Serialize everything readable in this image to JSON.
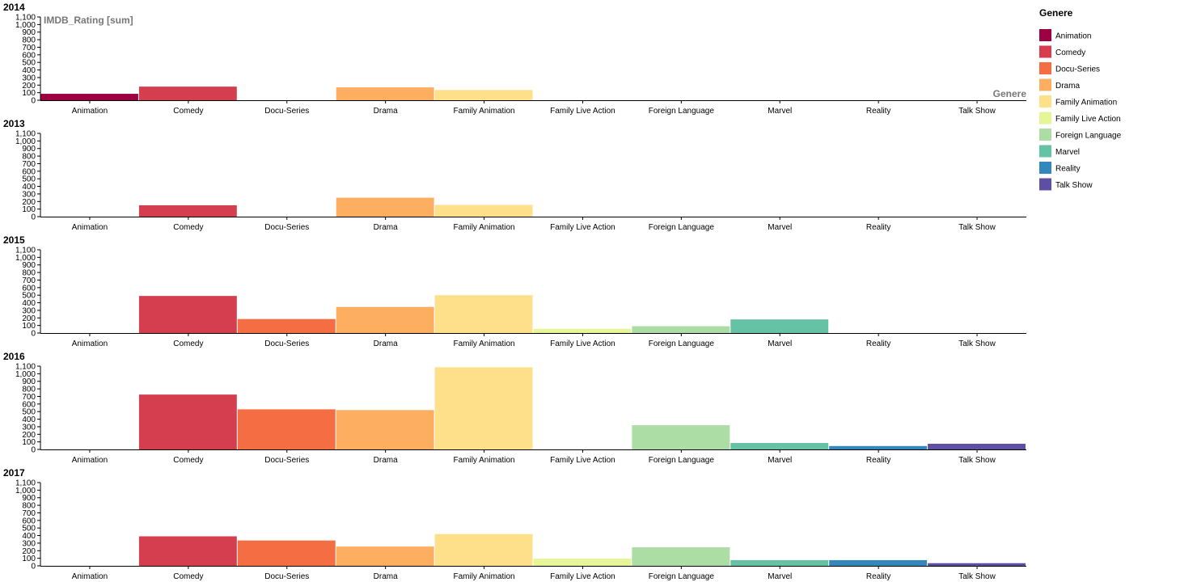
{
  "legend": {
    "title": "Genere"
  },
  "chart_data": {
    "type": "bar",
    "y_axis_title": "IMDB_Rating [sum]",
    "x_axis_title": "Genere",
    "ylim": [
      0,
      1100
    ],
    "yticks": [
      0,
      100,
      200,
      300,
      400,
      500,
      600,
      700,
      800,
      900,
      1000,
      1100
    ],
    "ytick_labels": [
      "0",
      "100",
      "200",
      "300",
      "400",
      "500",
      "600",
      "700",
      "800",
      "900",
      "1,000",
      "1,100"
    ],
    "categories": [
      "Animation",
      "Comedy",
      "Docu-Series",
      "Drama",
      "Family Animation",
      "Family Live Action",
      "Foreign Language",
      "Marvel",
      "Reality",
      "Talk Show"
    ],
    "colors": [
      "#9e0142",
      "#d53e4f",
      "#f46d43",
      "#fdae61",
      "#fee08b",
      "#e6f598",
      "#abdda4",
      "#66c2a5",
      "#3288bd",
      "#5e4fa2"
    ],
    "grid": false,
    "legend_position": "right",
    "panels": [
      {
        "title": "2014",
        "values": [
          85,
          180,
          0,
          170,
          135,
          0,
          0,
          0,
          0,
          0
        ]
      },
      {
        "title": "2013",
        "values": [
          0,
          150,
          0,
          250,
          155,
          0,
          0,
          0,
          0,
          0
        ]
      },
      {
        "title": "2015",
        "values": [
          0,
          490,
          185,
          345,
          500,
          55,
          90,
          180,
          0,
          0
        ]
      },
      {
        "title": "2016",
        "values": [
          0,
          725,
          530,
          520,
          1085,
          0,
          320,
          85,
          45,
          75
        ]
      },
      {
        "title": "2017",
        "values": [
          0,
          390,
          335,
          255,
          420,
          95,
          245,
          75,
          75,
          35
        ]
      }
    ]
  }
}
